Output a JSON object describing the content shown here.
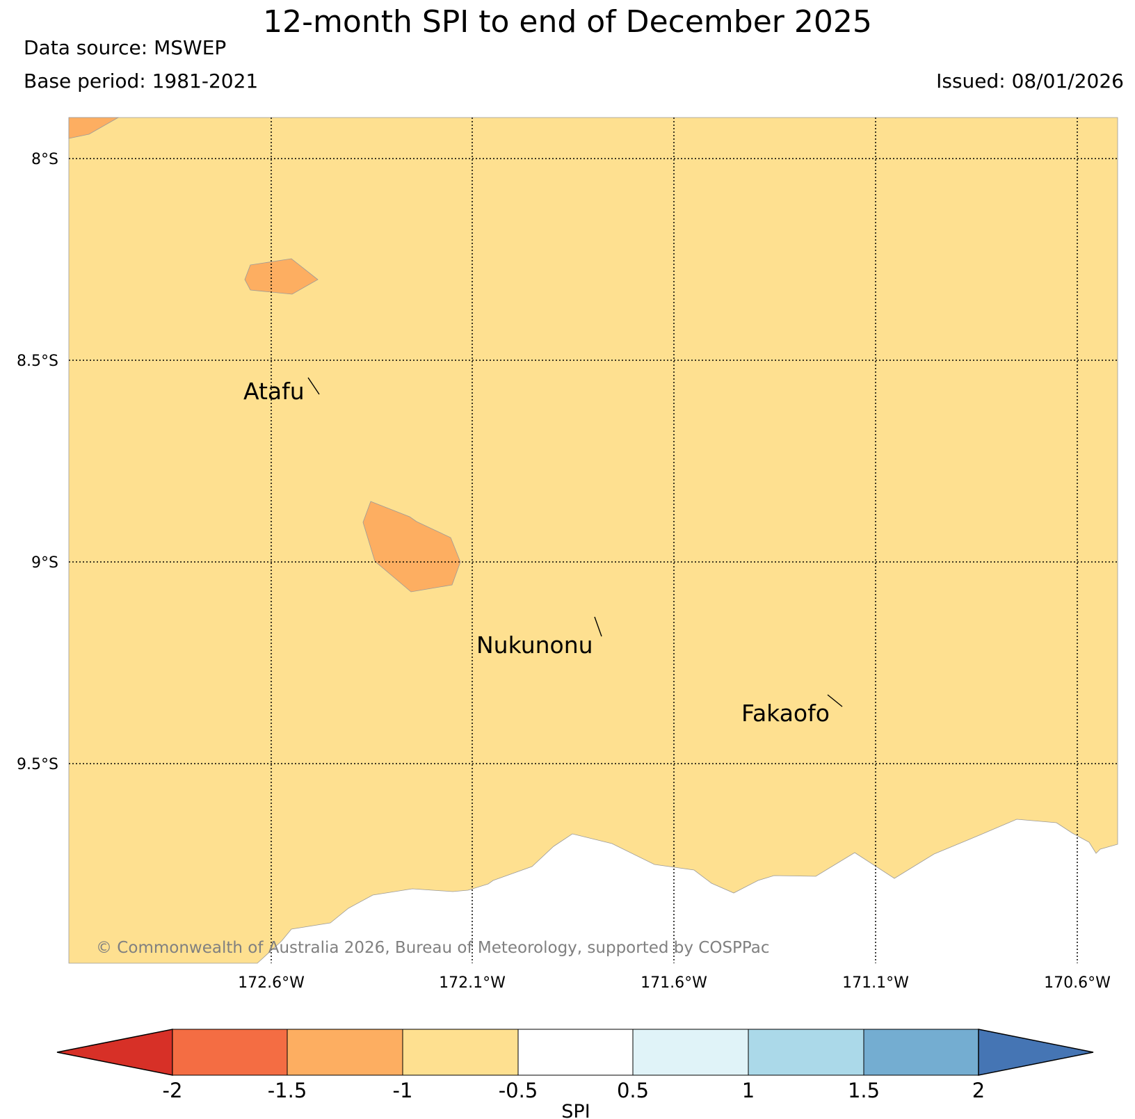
{
  "header": {
    "title": "12-month SPI to end of December 2025",
    "data_source": "Data source: MSWEP",
    "base_period": "Base period: 1981-2021",
    "issued": "Issued: 08/01/2026"
  },
  "map": {
    "lat_labels": [
      "8°S",
      "8.5°S",
      "9°S",
      "9.5°S"
    ],
    "lon_labels": [
      "172.6°W",
      "172.1°W",
      "171.6°W",
      "171.1°W",
      "170.6°W"
    ],
    "places": [
      "Atafu",
      "Nukunonu",
      "Fakaofo"
    ],
    "copyright": "© Commonwealth of Australia 2026, Bureau of Meteorology, supported by COSPPac",
    "fill_colors": {
      "dry_moderate": "#fee090",
      "dry_severe": "#fdae61"
    }
  },
  "colorbar": {
    "label": "SPI",
    "ticks": [
      "-2",
      "-1.5",
      "-1",
      "-0.5",
      "0.5",
      "1",
      "1.5",
      "2"
    ],
    "colors": [
      "#d73027",
      "#f46d43",
      "#fdae61",
      "#fee090",
      "#ffffff",
      "#e0f3f8",
      "#abd9e9",
      "#74add1",
      "#4575b4"
    ]
  }
}
